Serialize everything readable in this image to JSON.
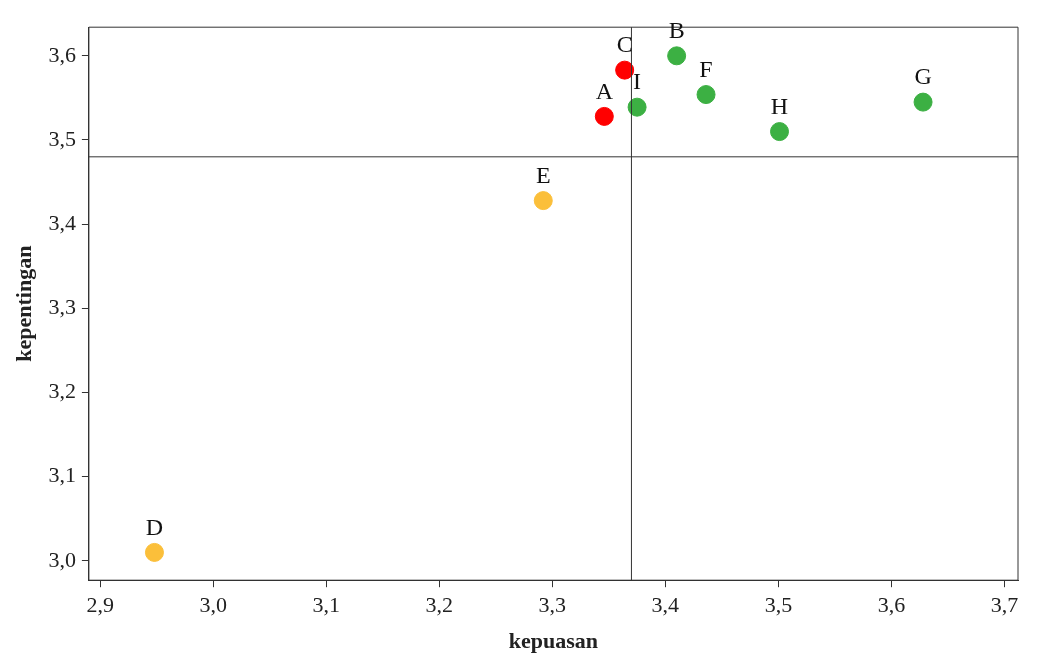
{
  "chart_data": {
    "type": "scatter",
    "xlabel": "kepuasan",
    "ylabel": "kepentingan",
    "xlim": [
      2.89,
      3.712
    ],
    "ylim": [
      2.977,
      3.634
    ],
    "xticks": [
      {
        "value": 2.9,
        "label": "2,9"
      },
      {
        "value": 3.0,
        "label": "3,0"
      },
      {
        "value": 3.1,
        "label": "3,1"
      },
      {
        "value": 3.2,
        "label": "3,2"
      },
      {
        "value": 3.3,
        "label": "3,3"
      },
      {
        "value": 3.4,
        "label": "3,4"
      },
      {
        "value": 3.5,
        "label": "3,5"
      },
      {
        "value": 3.6,
        "label": "3,6"
      },
      {
        "value": 3.7,
        "label": "3,7"
      }
    ],
    "yticks": [
      {
        "value": 3.0,
        "label": "3,0"
      },
      {
        "value": 3.1,
        "label": "3,1"
      },
      {
        "value": 3.2,
        "label": "3,2"
      },
      {
        "value": 3.3,
        "label": "3,3"
      },
      {
        "value": 3.4,
        "label": "3,4"
      },
      {
        "value": 3.5,
        "label": "3,5"
      },
      {
        "value": 3.6,
        "label": "3,6"
      }
    ],
    "series": [
      {
        "color": "#ff0000",
        "x": [
          3.346,
          3.364
        ],
        "values": [
          3.528,
          3.583
        ]
      },
      {
        "color": "#3cb043",
        "x": [
          3.41,
          3.436,
          3.628,
          3.501,
          3.375
        ],
        "values": [
          3.6,
          3.554,
          3.545,
          3.51,
          3.539
        ]
      },
      {
        "color": "#fbbf3a",
        "x": [
          2.948,
          3.292
        ],
        "values": [
          3.01,
          3.428
        ]
      }
    ],
    "annotations": [
      {
        "text": "A",
        "x": 3.346,
        "y": 3.528
      },
      {
        "text": "C",
        "x": 3.364,
        "y": 3.583
      },
      {
        "text": "B",
        "x": 3.41,
        "y": 3.6
      },
      {
        "text": "F",
        "x": 3.436,
        "y": 3.554
      },
      {
        "text": "G",
        "x": 3.628,
        "y": 3.545
      },
      {
        "text": "H",
        "x": 3.501,
        "y": 3.51
      },
      {
        "text": "I",
        "x": 3.375,
        "y": 3.539
      },
      {
        "text": "D",
        "x": 2.948,
        "y": 3.01
      },
      {
        "text": "E",
        "x": 3.292,
        "y": 3.428
      }
    ],
    "ref_lines": [
      {
        "axis": "x",
        "value": 3.37,
        "color": "#333333"
      },
      {
        "axis": "y",
        "value": 3.48,
        "color": "#333333"
      }
    ],
    "grid": false,
    "legend": false,
    "marker": "circle"
  }
}
